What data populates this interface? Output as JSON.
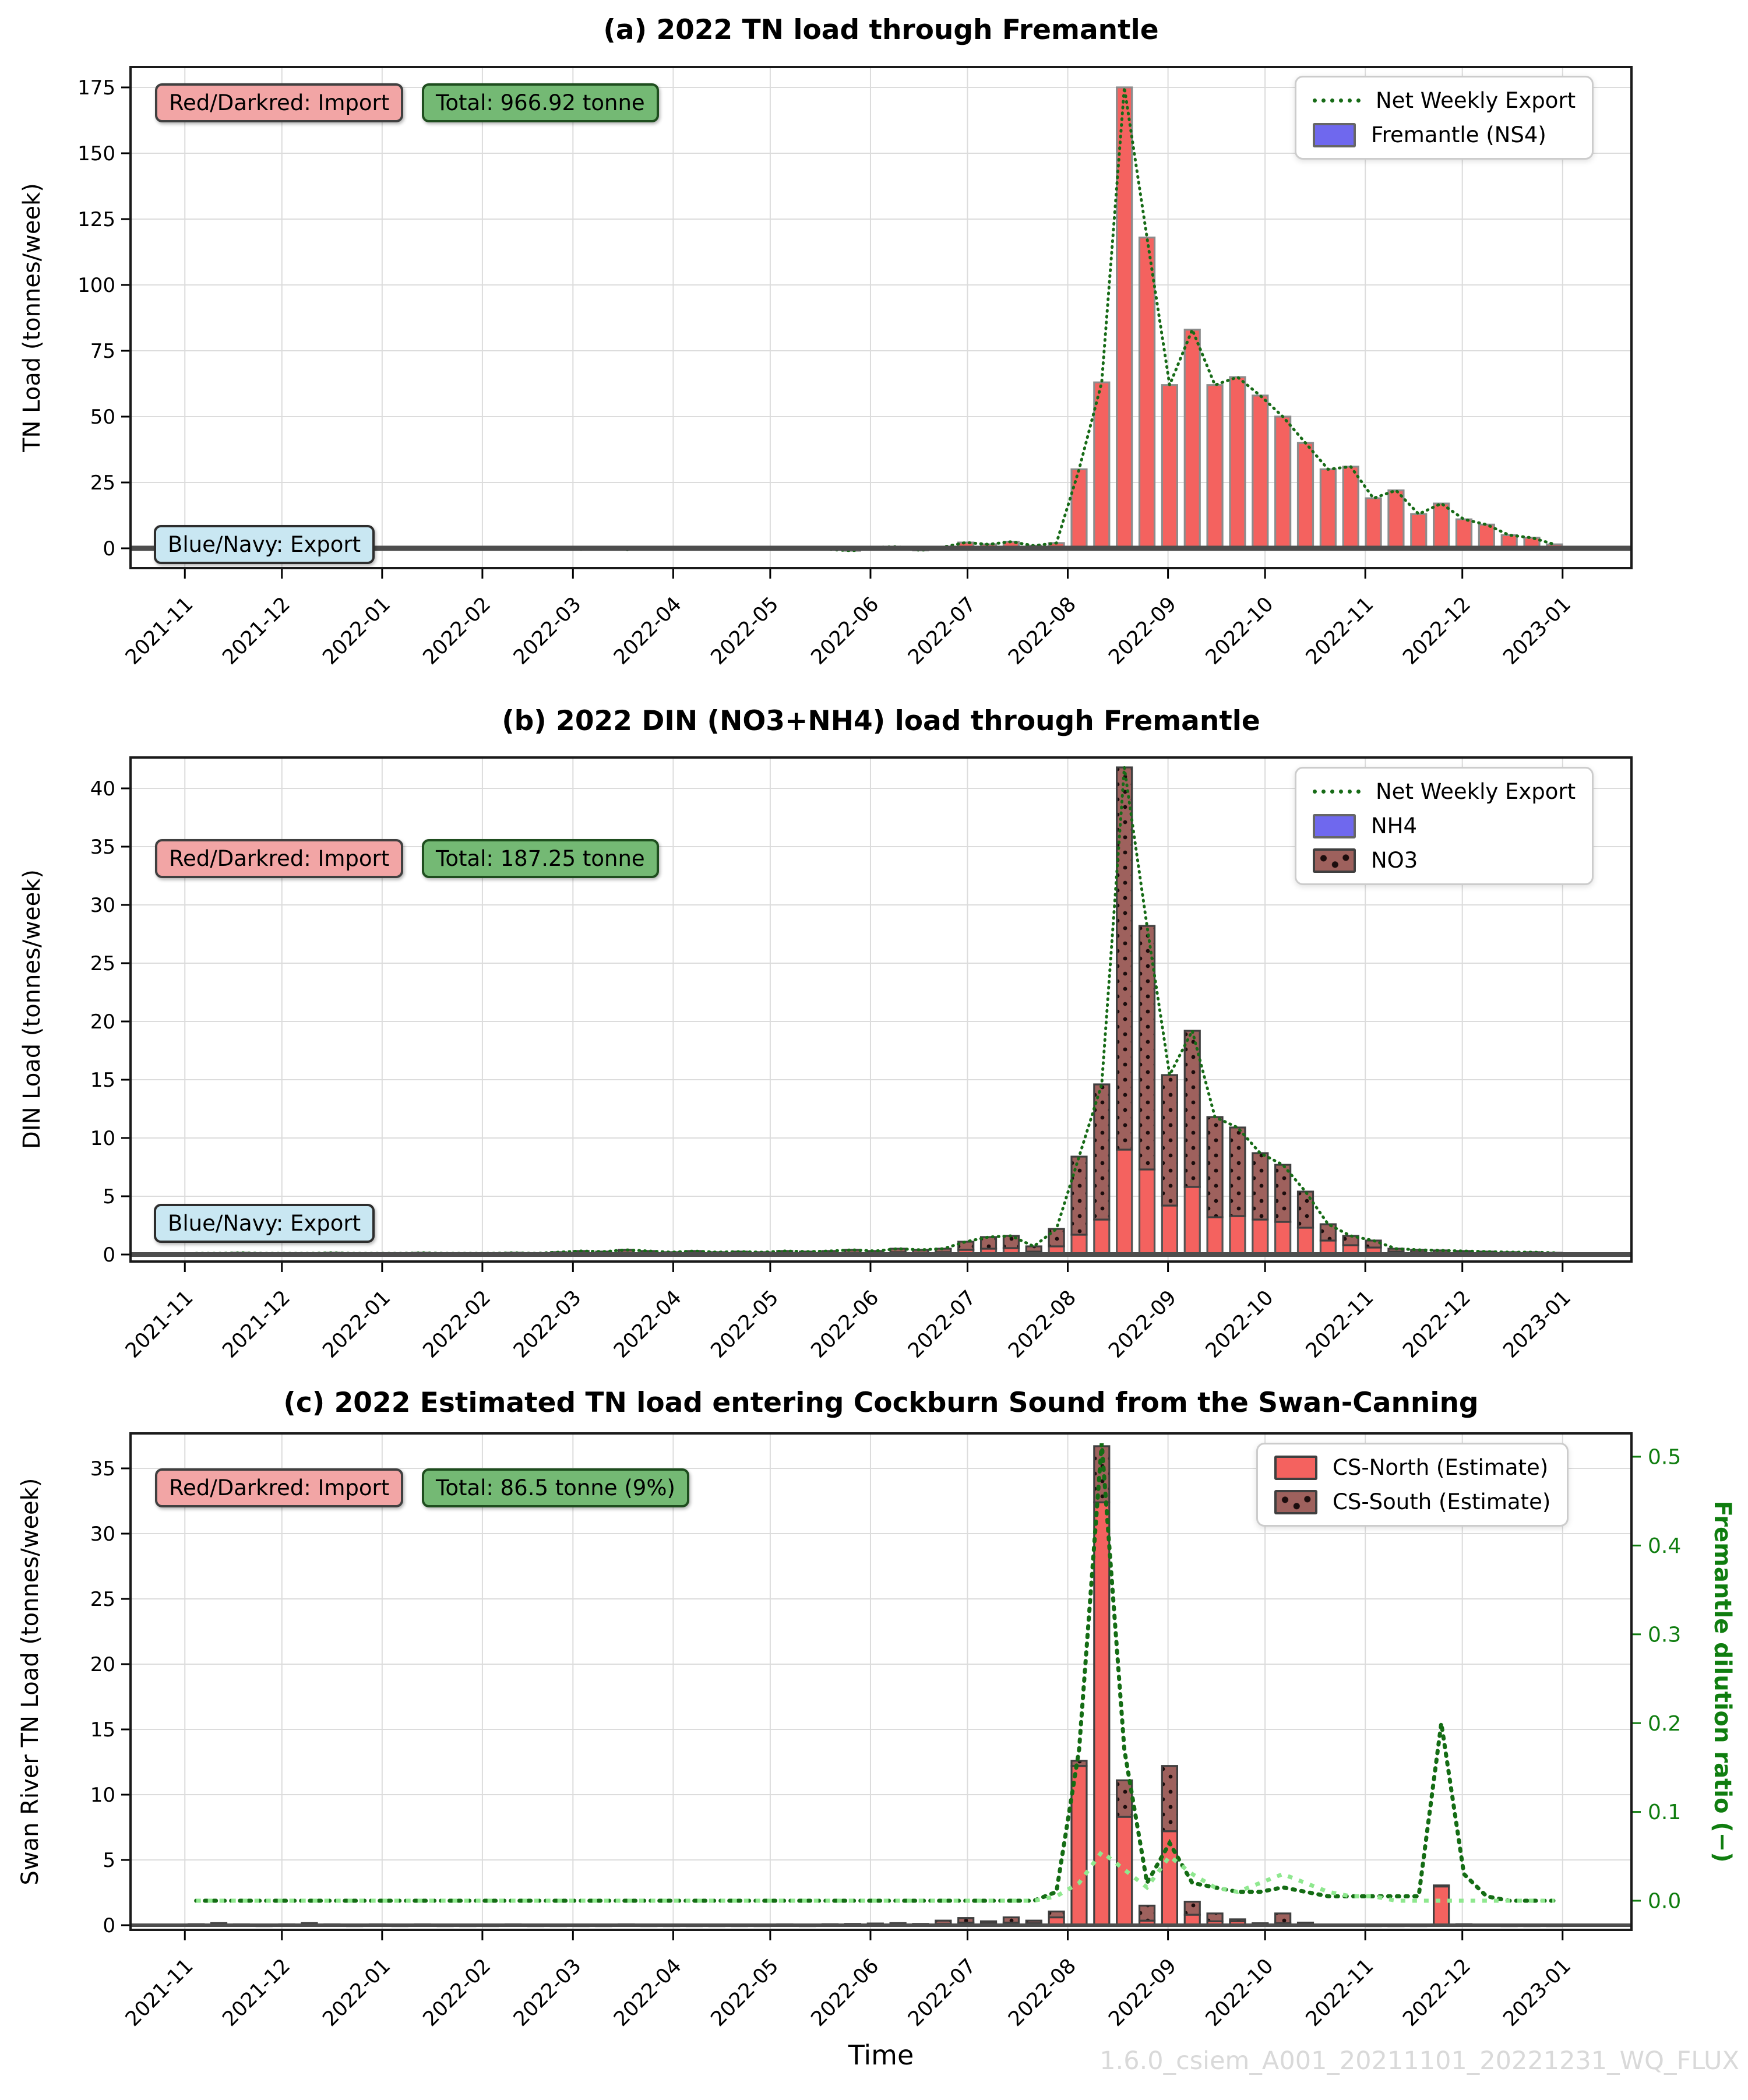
{
  "figure": {
    "xlabel": "Time",
    "watermark": "1.6.0_csiem_A001_20211101_20221231_WQ_FLUX"
  },
  "x_axis": {
    "tick_labels": [
      "2021-11",
      "2021-12",
      "2022-01",
      "2022-02",
      "2022-03",
      "2022-04",
      "2022-05",
      "2022-06",
      "2022-07",
      "2022-08",
      "2022-09",
      "2022-10",
      "2022-11",
      "2022-12",
      "2023-01"
    ],
    "tick_week_positions": [
      0,
      4.2857,
      8.7143,
      13.1429,
      17.1429,
      21.5714,
      25.8571,
      30.2857,
      34.5714,
      39,
      43.4286,
      47.7143,
      52.1429,
      56.4286,
      60.8571
    ],
    "x_unit": "week index since 2021-11-01, weekly bars"
  },
  "colors": {
    "import_red": "#f4625f",
    "import_darkred": "#9e615d",
    "export_blue": "#4a55c2",
    "legend_patch_blue": "#6f68ee",
    "net_export_line": "#176b17",
    "dilution_dark_line": "#146c14",
    "dilution_light_line": "#8fe88f",
    "bar_edge_gray": "#8c8c8c",
    "bar_edge_dark": "#3f3f3f",
    "zero_line": "#4d4d4d",
    "grid": "#dcdcdc",
    "right_axis_green": "#0f7d0f",
    "watermark_gray": "#d9d9d9"
  },
  "chart_data": [
    {
      "id": "a",
      "type": "bar",
      "title": "(a) 2022 TN load through Fremantle",
      "ylabel": "TN Load (tonnes/week)",
      "yticks": [
        0,
        25,
        50,
        75,
        100,
        125,
        150,
        175
      ],
      "ylim": [
        -7.5,
        182.5
      ],
      "grid": true,
      "legend_position": "upper right",
      "annotations": [
        {
          "text": "Red/Darkred: Import",
          "style": "import"
        },
        {
          "text": "Total: 966.92 tonne",
          "style": "total"
        },
        {
          "text": "Blue/Navy: Export",
          "style": "export"
        }
      ],
      "legend": [
        {
          "label": "Net Weekly Export",
          "swatch": "dotted-line"
        },
        {
          "label": "Fremantle (NS4)",
          "swatch": "blue-patch"
        }
      ],
      "values": [
        0.3,
        0.2,
        0.4,
        0.2,
        0.3,
        0.2,
        0.3,
        0.2,
        0.3,
        0.2,
        0.3,
        0.2,
        0.3,
        0.2,
        0.3,
        0.2,
        0.3,
        -0.5,
        0.3,
        -0.6,
        0.3,
        0.2,
        0.3,
        -0.4,
        0.3,
        0.2,
        0.4,
        0.3,
        -0.5,
        -0.9,
        0.4,
        0.6,
        -0.8,
        0.5,
        2.2,
        1.5,
        2.5,
        1.0,
        2.0,
        30,
        63,
        175,
        118,
        62,
        83,
        62,
        65,
        58,
        50,
        40,
        30,
        31,
        19,
        22,
        13,
        17,
        11,
        9,
        5,
        4,
        1.5
      ],
      "net_weekly_export_follows_values": true
    },
    {
      "id": "b",
      "type": "bar-stacked",
      "title": "(b) 2022 DIN (NO3+NH4) load through Fremantle",
      "ylabel": "DIN Load (tonnes/week)",
      "yticks": [
        0,
        5,
        10,
        15,
        20,
        25,
        30,
        35,
        40
      ],
      "ylim": [
        -0.6,
        42.6
      ],
      "grid": true,
      "legend_position": "upper right",
      "annotations": [
        {
          "text": "Red/Darkred: Import",
          "style": "import"
        },
        {
          "text": "Total: 187.25 tonne",
          "style": "total"
        },
        {
          "text": "Blue/Navy: Export",
          "style": "export"
        }
      ],
      "legend": [
        {
          "label": "Net Weekly Export",
          "swatch": "dotted-line"
        },
        {
          "label": "NH4",
          "swatch": "blue-patch"
        },
        {
          "label": "NO3",
          "swatch": "darkred-dot-patch"
        }
      ],
      "nh4": [
        0.04,
        0.04,
        0.06,
        0.04,
        0.04,
        0.04,
        0.06,
        0.04,
        0.04,
        0.04,
        0.06,
        0.04,
        0.04,
        0.04,
        0.06,
        0.04,
        0.08,
        0.12,
        0.1,
        0.15,
        0.12,
        0.08,
        0.12,
        0.08,
        0.1,
        0.08,
        0.12,
        0.1,
        0.12,
        0.15,
        0.12,
        0.2,
        0.15,
        0.2,
        0.4,
        0.5,
        0.55,
        0.25,
        0.7,
        1.7,
        3.0,
        9.0,
        7.3,
        4.2,
        5.8,
        3.2,
        3.3,
        3.0,
        2.8,
        2.3,
        1.2,
        0.8,
        0.6,
        0.25,
        0.2,
        0.15,
        0.15,
        0.1,
        0.1,
        0.1,
        0.05
      ],
      "total_din": [
        0.1,
        0.1,
        0.15,
        0.1,
        0.1,
        0.1,
        0.15,
        0.1,
        0.1,
        0.1,
        0.15,
        0.1,
        0.1,
        0.1,
        0.15,
        0.1,
        0.2,
        0.3,
        0.25,
        0.4,
        0.3,
        0.2,
        0.3,
        0.2,
        0.25,
        0.2,
        0.3,
        0.25,
        0.3,
        0.4,
        0.3,
        0.5,
        0.4,
        0.5,
        1.1,
        1.5,
        1.6,
        0.7,
        2.2,
        8.4,
        14.6,
        41.8,
        28.2,
        15.4,
        19.2,
        11.8,
        10.9,
        8.7,
        7.7,
        5.4,
        2.6,
        1.6,
        1.2,
        0.5,
        0.4,
        0.35,
        0.3,
        0.25,
        0.2,
        0.2,
        0.15
      ],
      "no3_is": "total_din minus nh4",
      "net_weekly_export_follows": "total_din"
    },
    {
      "id": "c",
      "type": "bar-stacked",
      "title": "(c) 2022 Estimated TN load entering Cockburn Sound from the Swan-Canning",
      "ylabel": "Swan River TN Load (tonnes/week)",
      "ylabel_right": "Fremantle dilution ratio (−)",
      "yticks": [
        0,
        5,
        10,
        15,
        20,
        25,
        30,
        35
      ],
      "ylim": [
        -0.3,
        38.0
      ],
      "right_yticks": [
        0.0,
        0.1,
        0.2,
        0.3,
        0.4,
        0.5
      ],
      "right_ylim": [
        -0.03,
        0.55
      ],
      "grid": true,
      "legend_position": "upper right",
      "annotations": [
        {
          "text": "Red/Darkred: Import",
          "style": "import"
        },
        {
          "text": "Total: 86.5 tonne (9%)",
          "style": "total"
        }
      ],
      "legend": [
        {
          "label": "CS-North (Estimate)",
          "swatch": "red-patch"
        },
        {
          "label": "CS-South (Estimate)",
          "swatch": "darkred-dot-patch"
        }
      ],
      "cs_north": [
        0.03,
        0.06,
        0.03,
        0.02,
        0.03,
        0.06,
        0.03,
        0.02,
        0.03,
        0.02,
        0.03,
        0.02,
        0.02,
        0.02,
        0.03,
        0.02,
        0.02,
        0.02,
        0.02,
        0.03,
        0.02,
        0.02,
        0.02,
        0.02,
        0.02,
        0.02,
        0.03,
        0.02,
        0.03,
        0.04,
        0.05,
        0.06,
        0.04,
        0.1,
        0.2,
        0.15,
        0.2,
        0.15,
        0.6,
        12.2,
        32.4,
        8.3,
        0.35,
        7.2,
        0.8,
        0.3,
        0.3,
        0.1,
        0.15,
        0.05,
        0.03,
        0.03,
        0.02,
        0.02,
        0.02,
        3.0,
        0.05,
        0.03,
        0.02,
        0.02,
        0.02
      ],
      "cs_south": [
        0.05,
        0.1,
        0.04,
        0.03,
        0.04,
        0.1,
        0.04,
        0.03,
        0.04,
        0.03,
        0.04,
        0.03,
        0.03,
        0.03,
        0.04,
        0.03,
        0.03,
        0.03,
        0.03,
        0.04,
        0.03,
        0.03,
        0.03,
        0.03,
        0.03,
        0.03,
        0.04,
        0.03,
        0.05,
        0.06,
        0.08,
        0.1,
        0.06,
        0.25,
        0.35,
        0.15,
        0.4,
        0.2,
        0.45,
        0.4,
        4.3,
        2.8,
        1.15,
        5.0,
        1.0,
        0.6,
        0.15,
        0.05,
        0.75,
        0.15,
        0.03,
        0.03,
        0.02,
        0.02,
        0.02,
        0.05,
        0.03,
        0.02,
        0.02,
        0.02,
        0.02
      ],
      "dilution_ratio_dark": [
        0,
        0,
        0,
        0,
        0,
        0,
        0,
        0,
        0,
        0,
        0,
        0,
        0,
        0,
        0,
        0,
        0,
        0,
        0,
        0,
        0,
        0,
        0,
        0,
        0,
        0,
        0,
        0,
        0,
        0,
        0,
        0,
        0,
        0,
        0,
        0,
        0,
        0,
        0.01,
        0.17,
        0.515,
        0.17,
        0.02,
        0.065,
        0.02,
        0.015,
        0.01,
        0.01,
        0.015,
        0.01,
        0.005,
        0.005,
        0.005,
        0.005,
        0.005,
        0.2,
        0.03,
        0.005,
        0,
        0,
        0
      ],
      "dilution_ratio_light": [
        0,
        0,
        0,
        0,
        0,
        0,
        0,
        0,
        0,
        0,
        0,
        0,
        0,
        0,
        0,
        0,
        0,
        0,
        0,
        0,
        0,
        0,
        0,
        0,
        0,
        0,
        0,
        0,
        0,
        0,
        0,
        0,
        0,
        0,
        0,
        0,
        0,
        0,
        0.005,
        0.02,
        0.055,
        0.035,
        0.015,
        0.05,
        0.03,
        0.015,
        0.01,
        0.02,
        0.03,
        0.02,
        0.01,
        0.005,
        0.005,
        0,
        0,
        0,
        0,
        0,
        0,
        0,
        0
      ]
    }
  ]
}
